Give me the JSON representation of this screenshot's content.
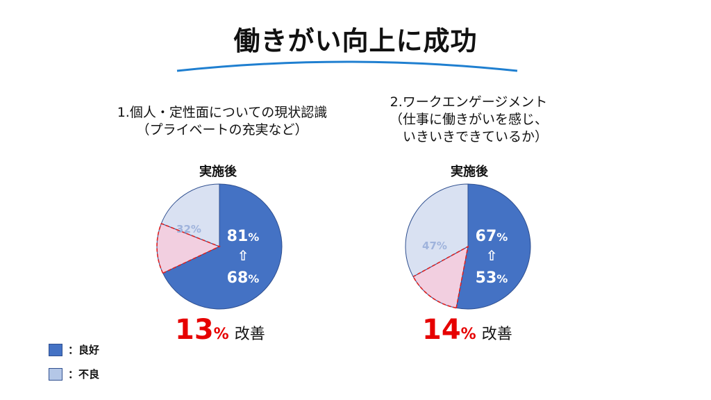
{
  "title": "働きがい向上に成功",
  "colors": {
    "good": "#4472c4",
    "bad": "#d9e1f2",
    "improve": "#f2cfe0",
    "dash": "#e02020",
    "accent": "#e60000",
    "line": "#1f7fd0"
  },
  "legend": {
    "good_label": "：良好",
    "bad_label": "：不良"
  },
  "arrow_glyph": "⇧",
  "chart_data": [
    {
      "type": "pie",
      "heading": "1.個人・定性面についての現状認識\n（プライベートの充実など）",
      "subtitle": "実施後",
      "slices": [
        {
          "label": "良好",
          "value": 68
        },
        {
          "label": "改善",
          "value": 13
        },
        {
          "label": "不良",
          "value": 19
        }
      ],
      "after_good": "81",
      "before_good": "68",
      "bad_label": "32%",
      "pct_sign": "%",
      "improvement": {
        "value": "13",
        "unit": "%",
        "word": "改善"
      }
    },
    {
      "type": "pie",
      "heading": "2.ワークエンゲージメント\n（仕事に働きがいを感じ、\n　いきいきできているか）",
      "subtitle": "実施後",
      "slices": [
        {
          "label": "良好",
          "value": 53
        },
        {
          "label": "改善",
          "value": 14
        },
        {
          "label": "不良",
          "value": 33
        }
      ],
      "after_good": "67",
      "before_good": "53",
      "bad_label": "47%",
      "pct_sign": "%",
      "improvement": {
        "value": "14",
        "unit": "%",
        "word": "改善"
      }
    }
  ]
}
